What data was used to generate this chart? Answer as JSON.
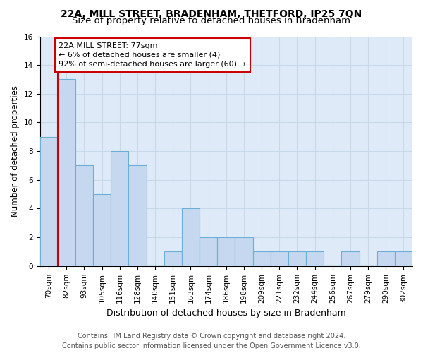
{
  "title": "22A, MILL STREET, BRADENHAM, THETFORD, IP25 7QN",
  "subtitle": "Size of property relative to detached houses in Bradenham",
  "xlabel": "Distribution of detached houses by size in Bradenham",
  "ylabel": "Number of detached properties",
  "categories": [
    "70sqm",
    "82sqm",
    "93sqm",
    "105sqm",
    "116sqm",
    "128sqm",
    "140sqm",
    "151sqm",
    "163sqm",
    "174sqm",
    "186sqm",
    "198sqm",
    "209sqm",
    "221sqm",
    "232sqm",
    "244sqm",
    "256sqm",
    "267sqm",
    "279sqm",
    "290sqm",
    "302sqm"
  ],
  "values": [
    9,
    13,
    7,
    5,
    8,
    7,
    0,
    1,
    4,
    2,
    2,
    2,
    1,
    1,
    1,
    1,
    0,
    1,
    0,
    1,
    1
  ],
  "bar_color": "#c5d8f0",
  "bar_edgecolor": "#6baed6",
  "bar_linewidth": 0.8,
  "annotation_text": "22A MILL STREET: 77sqm\n← 6% of detached houses are smaller (4)\n92% of semi-detached houses are larger (60) →",
  "annotation_box_color": "#ffffff",
  "annotation_box_edgecolor": "#cc0000",
  "vline_color": "#cc0000",
  "ylim": [
    0,
    16
  ],
  "yticks": [
    0,
    2,
    4,
    6,
    8,
    10,
    12,
    14,
    16
  ],
  "grid_color": "#c8d8e8",
  "bg_color": "#deeaf8",
  "footer_line1": "Contains HM Land Registry data © Crown copyright and database right 2024.",
  "footer_line2": "Contains public sector information licensed under the Open Government Licence v3.0.",
  "title_fontsize": 10,
  "subtitle_fontsize": 9.5,
  "xlabel_fontsize": 9,
  "ylabel_fontsize": 8.5,
  "tick_fontsize": 7.5,
  "footer_fontsize": 7,
  "annotation_fontsize": 8
}
